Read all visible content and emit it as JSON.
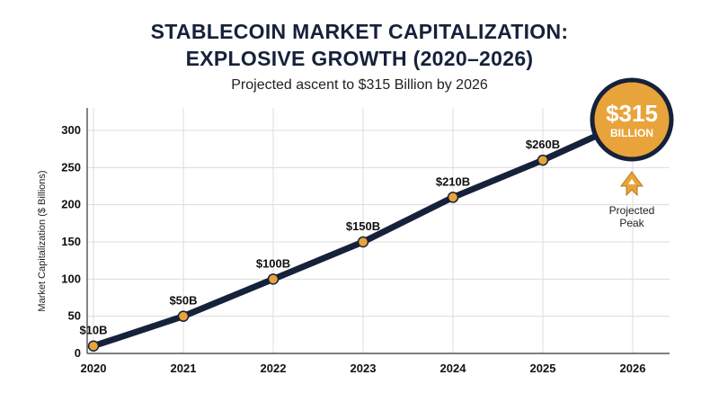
{
  "chart_data": {
    "type": "line",
    "title_lines": [
      "STABLECOIN MARKET CAPITALIZATION:",
      "EXPLOSIVE GROWTH (2020–2026)"
    ],
    "subtitle": "Projected ascent to $315 Billion by 2026",
    "xlabel": "",
    "ylabel": "Market Capitalization ($ Billions)",
    "categories": [
      "2020",
      "2021",
      "2022",
      "2023",
      "2024",
      "2025",
      "2026"
    ],
    "yticks": [
      0,
      50,
      100,
      150,
      200,
      250,
      300
    ],
    "ylim": [
      0,
      315
    ],
    "grid": true,
    "series": [
      {
        "values": [
          10,
          50,
          100,
          150,
          210,
          260,
          315
        ],
        "labels": [
          "$10B",
          "$50B",
          "$100B",
          "$150B",
          "$210B",
          "$260B",
          ""
        ]
      }
    ],
    "callout": {
      "value_text": "$315",
      "unit_text": "BILLION",
      "note_lines": [
        "Projected",
        "Peak"
      ],
      "icon": "rocket-icon"
    },
    "colors": {
      "line": "#16213a",
      "marker": "#e8a43a",
      "badge": "#e8a43a",
      "badge_border": "#16213a",
      "grid": "#dcdcdc"
    }
  }
}
